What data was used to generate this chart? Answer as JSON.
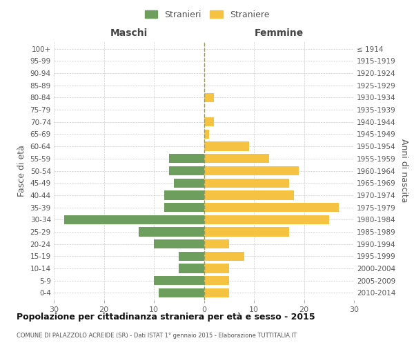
{
  "age_groups": [
    "100+",
    "95-99",
    "90-94",
    "85-89",
    "80-84",
    "75-79",
    "70-74",
    "65-69",
    "60-64",
    "55-59",
    "50-54",
    "45-49",
    "40-44",
    "35-39",
    "30-34",
    "25-29",
    "20-24",
    "15-19",
    "10-14",
    "5-9",
    "0-4"
  ],
  "birth_years": [
    "≤ 1914",
    "1915-1919",
    "1920-1924",
    "1925-1929",
    "1930-1934",
    "1935-1939",
    "1940-1944",
    "1945-1949",
    "1950-1954",
    "1955-1959",
    "1960-1964",
    "1965-1969",
    "1970-1974",
    "1975-1979",
    "1980-1984",
    "1985-1989",
    "1990-1994",
    "1995-1999",
    "2000-2004",
    "2005-2009",
    "2010-2014"
  ],
  "males": [
    0,
    0,
    0,
    0,
    0,
    0,
    0,
    0,
    0,
    7,
    7,
    6,
    8,
    8,
    28,
    13,
    10,
    5,
    5,
    10,
    9
  ],
  "females": [
    0,
    0,
    0,
    0,
    2,
    0,
    2,
    1,
    9,
    13,
    19,
    17,
    18,
    27,
    25,
    17,
    5,
    8,
    5,
    5,
    5
  ],
  "male_color": "#6d9e5e",
  "female_color": "#f5c242",
  "background_color": "#ffffff",
  "grid_color": "#cccccc",
  "title": "Popolazione per cittadinanza straniera per età e sesso - 2015",
  "subtitle": "COMUNE DI PALAZZOLO ACREIDE (SR) - Dati ISTAT 1° gennaio 2015 - Elaborazione TUTTITALIA.IT",
  "left_label": "Maschi",
  "right_label": "Femmine",
  "ylabel": "Fasce di età",
  "ylabel2": "Anni di nascita",
  "legend_male": "Stranieri",
  "legend_female": "Straniere",
  "xlim": 30,
  "bar_height": 0.75
}
